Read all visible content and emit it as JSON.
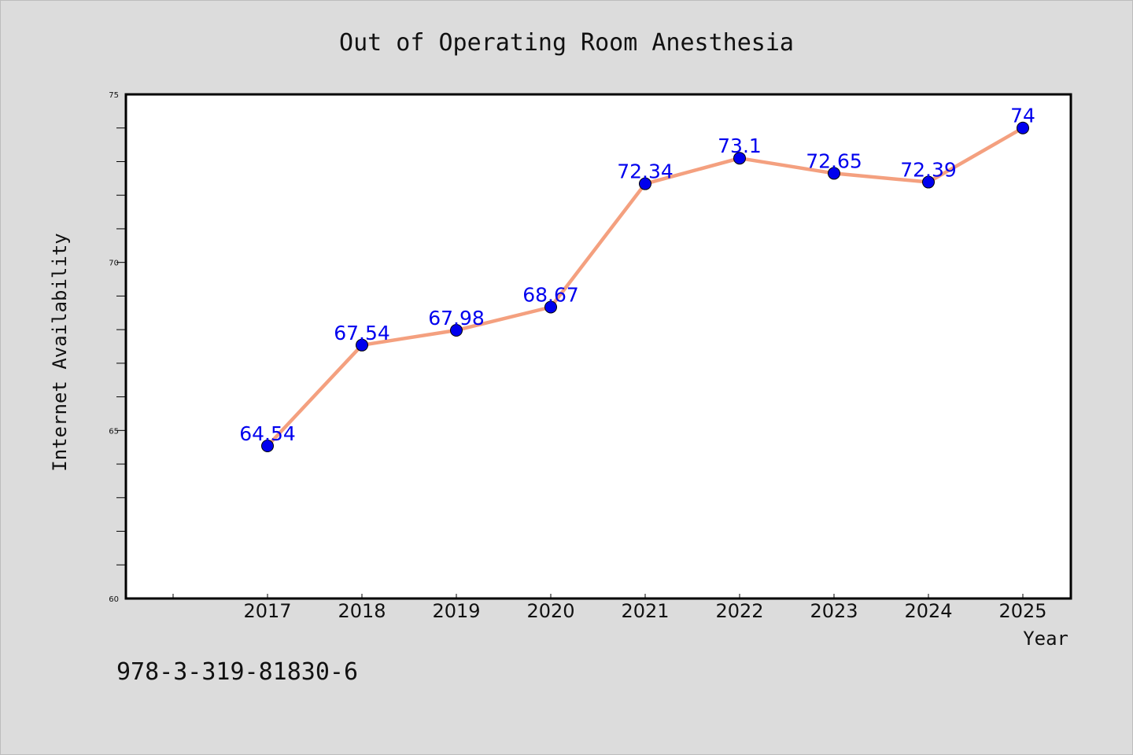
{
  "chart_data": {
    "type": "line",
    "title": "Out of Operating Room Anesthesia",
    "xlabel": "Year",
    "ylabel": "Internet Availability",
    "categories": [
      "2017",
      "2018",
      "2019",
      "2020",
      "2021",
      "2022",
      "2023",
      "2024",
      "2025"
    ],
    "series": [
      {
        "values": [
          64.54,
          67.54,
          67.98,
          68.67,
          72.34,
          73.1,
          72.65,
          72.39,
          74
        ]
      }
    ],
    "data_labels": [
      "64.54",
      "67.54",
      "67.98",
      "68.67",
      "72.34",
      "73.1",
      "72.65",
      "72.39",
      "74"
    ],
    "ylim": [
      60,
      75
    ],
    "yticks": [
      "60",
      "65",
      "70",
      "75"
    ],
    "grid": false,
    "legend": "none",
    "line_color": "#f4a07f",
    "marker_color": "#0000ee",
    "label_color": "#0000ee",
    "plot_background": "#ffffff",
    "page_background": "#dcdcdc"
  },
  "footer": {
    "code": "978-3-319-81830-6"
  }
}
